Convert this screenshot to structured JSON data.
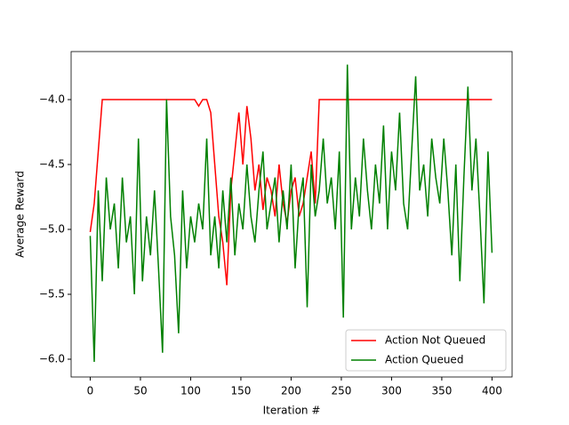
{
  "chart_data": {
    "type": "line",
    "xlabel": "Iteration #",
    "ylabel": "Average Reward",
    "x": [
      0,
      4,
      8,
      12,
      16,
      20,
      24,
      28,
      32,
      36,
      40,
      44,
      48,
      52,
      56,
      60,
      64,
      68,
      72,
      76,
      80,
      84,
      88,
      92,
      96,
      100,
      104,
      108,
      112,
      116,
      120,
      124,
      128,
      132,
      136,
      140,
      144,
      148,
      152,
      156,
      160,
      164,
      168,
      172,
      176,
      180,
      184,
      188,
      192,
      196,
      200,
      204,
      208,
      212,
      216,
      220,
      224,
      228,
      232,
      236,
      240,
      244,
      248,
      252,
      256,
      260,
      264,
      268,
      272,
      276,
      280,
      284,
      288,
      292,
      296,
      300,
      304,
      308,
      312,
      316,
      320,
      324,
      328,
      332,
      336,
      340,
      344,
      348,
      352,
      356,
      360,
      364,
      368,
      372,
      376,
      380,
      384,
      388,
      392,
      396,
      400
    ],
    "series": [
      {
        "name": "Action Not Queued",
        "color": "#ff0000",
        "values": [
          -5.02,
          -4.8,
          -4.4,
          -4.0,
          -4.0,
          -4.0,
          -4.0,
          -4.0,
          -4.0,
          -4.0,
          -4.0,
          -4.0,
          -4.0,
          -4.0,
          -4.0,
          -4.0,
          -4.0,
          -4.0,
          -4.0,
          -4.0,
          -4.0,
          -4.0,
          -4.0,
          -4.0,
          -4.0,
          -4.0,
          -4.0,
          -4.05,
          -4.0,
          -4.0,
          -4.1,
          -4.5,
          -4.9,
          -5.1,
          -5.43,
          -4.7,
          -4.4,
          -4.1,
          -4.5,
          -4.05,
          -4.3,
          -4.7,
          -4.5,
          -4.85,
          -4.6,
          -4.7,
          -4.9,
          -4.5,
          -4.8,
          -4.95,
          -4.7,
          -4.6,
          -4.9,
          -4.8,
          -4.6,
          -4.4,
          -4.8,
          -4.0,
          -4.0,
          -4.0,
          -4.0,
          -4.0,
          -4.0,
          -4.0,
          -4.0,
          -4.0,
          -4.0,
          -4.0,
          -4.0,
          -4.0,
          -4.0,
          -4.0,
          -4.0,
          -4.0,
          -4.0,
          -4.0,
          -4.0,
          -4.0,
          -4.0,
          -4.0,
          -4.0,
          -4.0,
          -4.0,
          -4.0,
          -4.0,
          -4.0,
          -4.0,
          -4.0,
          -4.0,
          -4.0,
          -4.0,
          -4.0,
          -4.0,
          -4.0,
          -4.0,
          -4.0,
          -4.0,
          -4.0,
          -4.0,
          -4.0,
          -4.0
        ]
      },
      {
        "name": "Action Queued",
        "color": "#008000",
        "values": [
          -5.05,
          -6.02,
          -4.7,
          -5.4,
          -4.6,
          -5.0,
          -4.8,
          -5.3,
          -4.6,
          -5.1,
          -4.9,
          -5.5,
          -4.3,
          -5.4,
          -4.9,
          -5.2,
          -4.7,
          -5.3,
          -5.95,
          -4.0,
          -4.9,
          -5.2,
          -5.8,
          -4.7,
          -5.3,
          -4.9,
          -5.1,
          -4.8,
          -5.0,
          -4.3,
          -5.2,
          -4.9,
          -5.3,
          -4.7,
          -5.1,
          -4.6,
          -5.2,
          -4.8,
          -5.0,
          -4.5,
          -4.9,
          -5.1,
          -4.7,
          -4.4,
          -5.0,
          -4.8,
          -4.6,
          -5.1,
          -4.7,
          -5.0,
          -4.5,
          -5.3,
          -4.8,
          -4.6,
          -5.6,
          -4.5,
          -4.9,
          -4.7,
          -4.3,
          -4.8,
          -4.6,
          -5.0,
          -4.4,
          -5.68,
          -3.73,
          -5.0,
          -4.6,
          -4.9,
          -4.3,
          -4.7,
          -5.0,
          -4.5,
          -4.8,
          -4.2,
          -5.0,
          -4.4,
          -4.7,
          -4.1,
          -4.8,
          -5.0,
          -4.4,
          -3.82,
          -4.7,
          -4.5,
          -4.9,
          -4.3,
          -4.6,
          -4.8,
          -4.3,
          -4.7,
          -5.2,
          -4.5,
          -5.4,
          -4.6,
          -3.9,
          -4.7,
          -4.3,
          -4.9,
          -5.57,
          -4.4,
          -5.18
        ]
      }
    ],
    "xlim": [
      -19,
      420
    ],
    "ylim": [
      -6.137,
      -3.63
    ],
    "xticks": [
      0,
      50,
      100,
      150,
      200,
      250,
      300,
      350,
      400
    ],
    "yticks": [
      {
        "value": -6.0,
        "label": "−6.0"
      },
      {
        "value": -5.5,
        "label": "−5.5"
      },
      {
        "value": -5.0,
        "label": "−5.0"
      },
      {
        "value": -4.5,
        "label": "−4.5"
      },
      {
        "value": -4.0,
        "label": "−4.0"
      }
    ],
    "legend": "lower right"
  }
}
